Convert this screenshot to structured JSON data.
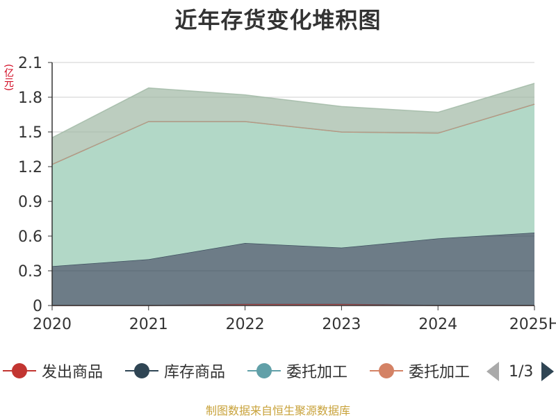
{
  "chart_data": {
    "type": "area",
    "title": "近年存货变化堆积图",
    "unit_label": "(亿元)",
    "categories": [
      "2020",
      "2021",
      "2022",
      "2023",
      "2024",
      "2025H"
    ],
    "ylim": [
      0,
      2.1
    ],
    "yticks": [
      "0",
      "0.3",
      "0.6",
      "0.9",
      "1.2",
      "1.5",
      "1.8",
      "2.1"
    ],
    "stacked": true,
    "grid": true,
    "series": [
      {
        "name": "发出商品",
        "color": "#c23531",
        "values": [
          0.0,
          0.0,
          0.01,
          0.01,
          0.0,
          0.0
        ]
      },
      {
        "name": "库存商品",
        "color": "#2f4554",
        "values": [
          0.34,
          0.4,
          0.53,
          0.49,
          0.58,
          0.63
        ]
      },
      {
        "name": "委托加工",
        "color": "#61a0a8",
        "fill": "#b2d8c7",
        "values": [
          0.88,
          1.19,
          1.05,
          1.0,
          0.91,
          1.11
        ]
      },
      {
        "name": "委托加工",
        "color": "#d48265",
        "values": [
          0.0,
          0.0,
          0.0,
          0.0,
          0.0,
          0.0
        ]
      },
      {
        "name": "",
        "color": "#9fb8a4",
        "values": [
          0.23,
          0.29,
          0.23,
          0.22,
          0.18,
          0.18
        ]
      }
    ],
    "legend_position": "bottom"
  },
  "legend": {
    "items": [
      {
        "name": "发出商品",
        "color": "#c23531"
      },
      {
        "name": "库存商品",
        "color": "#2f4554"
      },
      {
        "name": "委托加工",
        "color": "#61a0a8"
      },
      {
        "name": "委托加工",
        "color": "#d48265"
      }
    ],
    "page": "1/3"
  },
  "source": "制图数据来自恒生聚源数据库"
}
